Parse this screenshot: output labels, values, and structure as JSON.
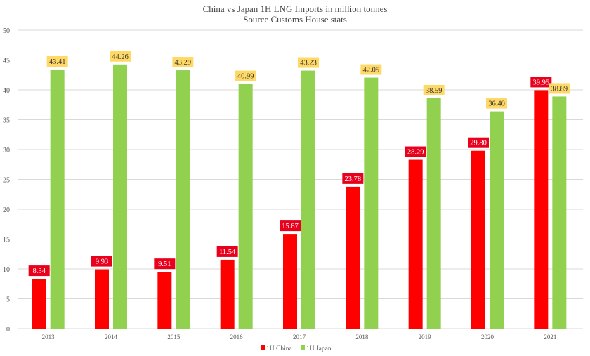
{
  "chart_data": {
    "type": "bar",
    "title": "China vs Japan 1H LNG Imports in million tonnes",
    "subtitle": "Source Customs House stats",
    "xlabel": "",
    "ylabel": "",
    "ylim": [
      0,
      50
    ],
    "yticks": [
      "0",
      "5",
      "10",
      "15",
      "20",
      "25",
      "30",
      "35",
      "40",
      "45",
      "50"
    ],
    "grid": true,
    "legend_position": "bottom",
    "categories": [
      "2013",
      "2014",
      "2015",
      "2016",
      "2017",
      "2018",
      "2019",
      "2020",
      "2021"
    ],
    "series": [
      {
        "name": "1H China",
        "color": "#ff0000",
        "label_bg": "#e8001c",
        "label_color": "#ffffff",
        "values": [
          8.34,
          9.93,
          9.51,
          11.54,
          15.87,
          23.78,
          28.29,
          29.8,
          39.95
        ],
        "labels": [
          "8.34",
          "9.93",
          "9.51",
          "11.54",
          "15.87",
          "23.78",
          "28.29",
          "29.80",
          "39.95"
        ]
      },
      {
        "name": "1H Japan",
        "color": "#92d050",
        "label_bg": "#ffd966",
        "label_color": "#333333",
        "values": [
          43.41,
          44.26,
          43.29,
          40.99,
          43.23,
          42.05,
          38.59,
          36.4,
          38.89
        ],
        "labels": [
          "43.41",
          "44.26",
          "43.29",
          "40.99",
          "43.23",
          "42.05",
          "38.59",
          "36.40",
          "38.89"
        ]
      }
    ]
  }
}
